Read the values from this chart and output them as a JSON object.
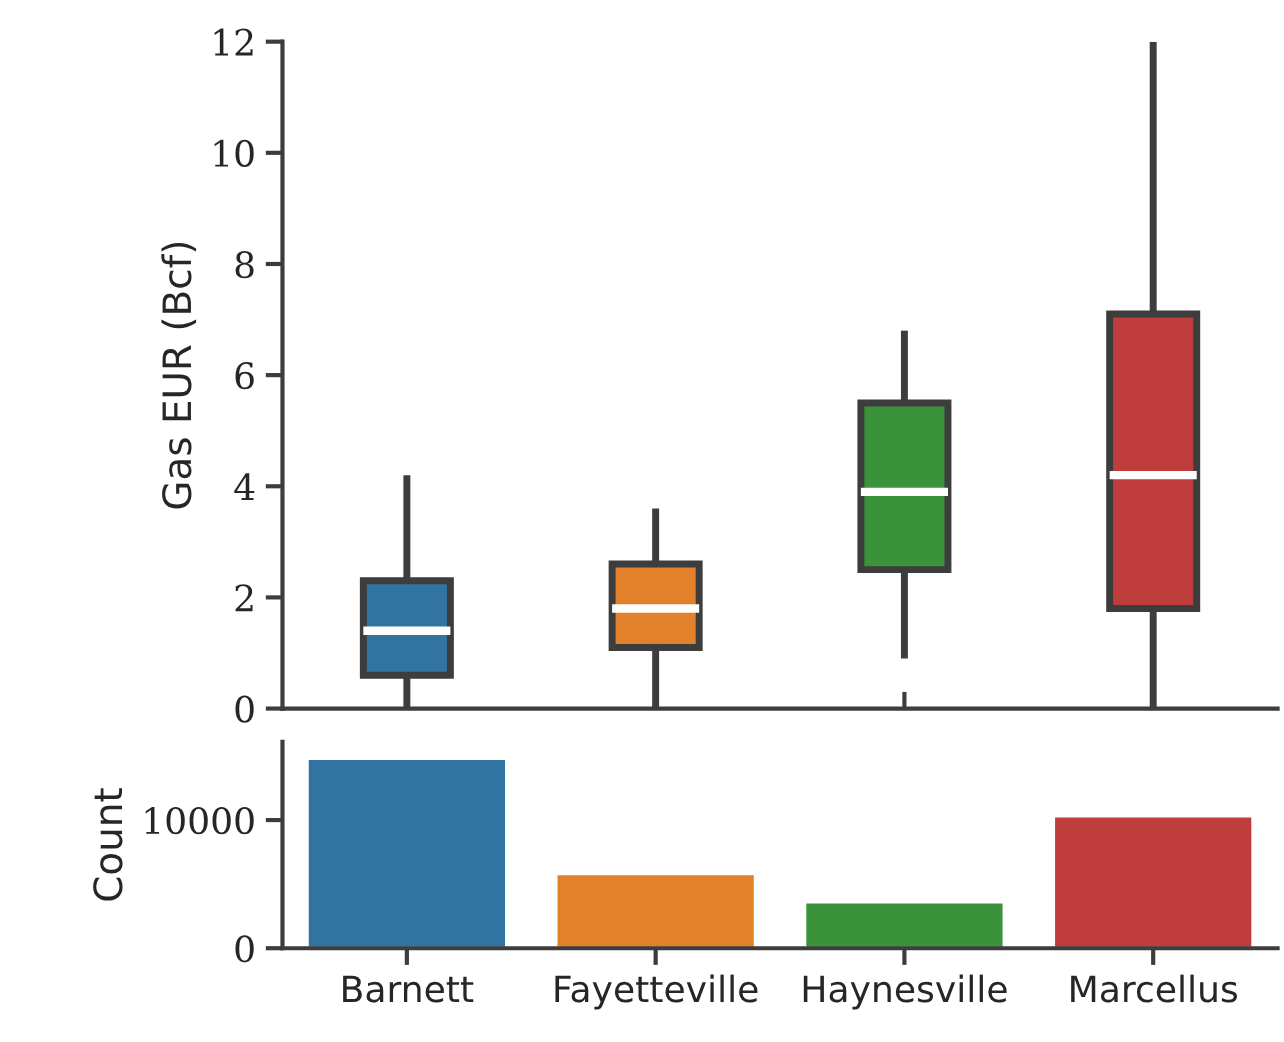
{
  "chart_data": [
    {
      "type": "box",
      "ylabel": "Gas EUR (Bcf)",
      "colors": [
        "#3274a1",
        "#e1812c",
        "#3a923a",
        "#c03d3e"
      ],
      "ylim": [
        0,
        12
      ],
      "yticks": [
        0,
        2,
        4,
        6,
        8,
        10,
        12
      ],
      "tick_labels": "y",
      "grid": false,
      "legend": false,
      "boxes": [
        {
          "low": 0,
          "q1": 0.6,
          "median": 1.4,
          "q3": 2.3,
          "high": 4.2
        },
        {
          "low": 0,
          "q1": 1.1,
          "median": 1.8,
          "q3": 2.6,
          "high": 3.6
        },
        {
          "low": 0.9,
          "q1": 2.5,
          "median": 3.9,
          "q3": 5.5,
          "high": 6.8
        },
        {
          "low": 0,
          "q1": 1.8,
          "median": 4.2,
          "q3": 7.1,
          "high": 12
        }
      ]
    },
    {
      "type": "bar",
      "ylabel": "Count",
      "categories": [
        "Barnett",
        "Fayetteville",
        "Haynesville",
        "Marcellus"
      ],
      "values": [
        14800,
        5800,
        3600,
        10300
      ],
      "colors": [
        "#3274a1",
        "#e1812c",
        "#3a923a",
        "#c03d3e"
      ],
      "ylim": [
        0,
        16100
      ],
      "yticks": [
        0,
        10000
      ],
      "grid": false,
      "legend": false
    }
  ]
}
